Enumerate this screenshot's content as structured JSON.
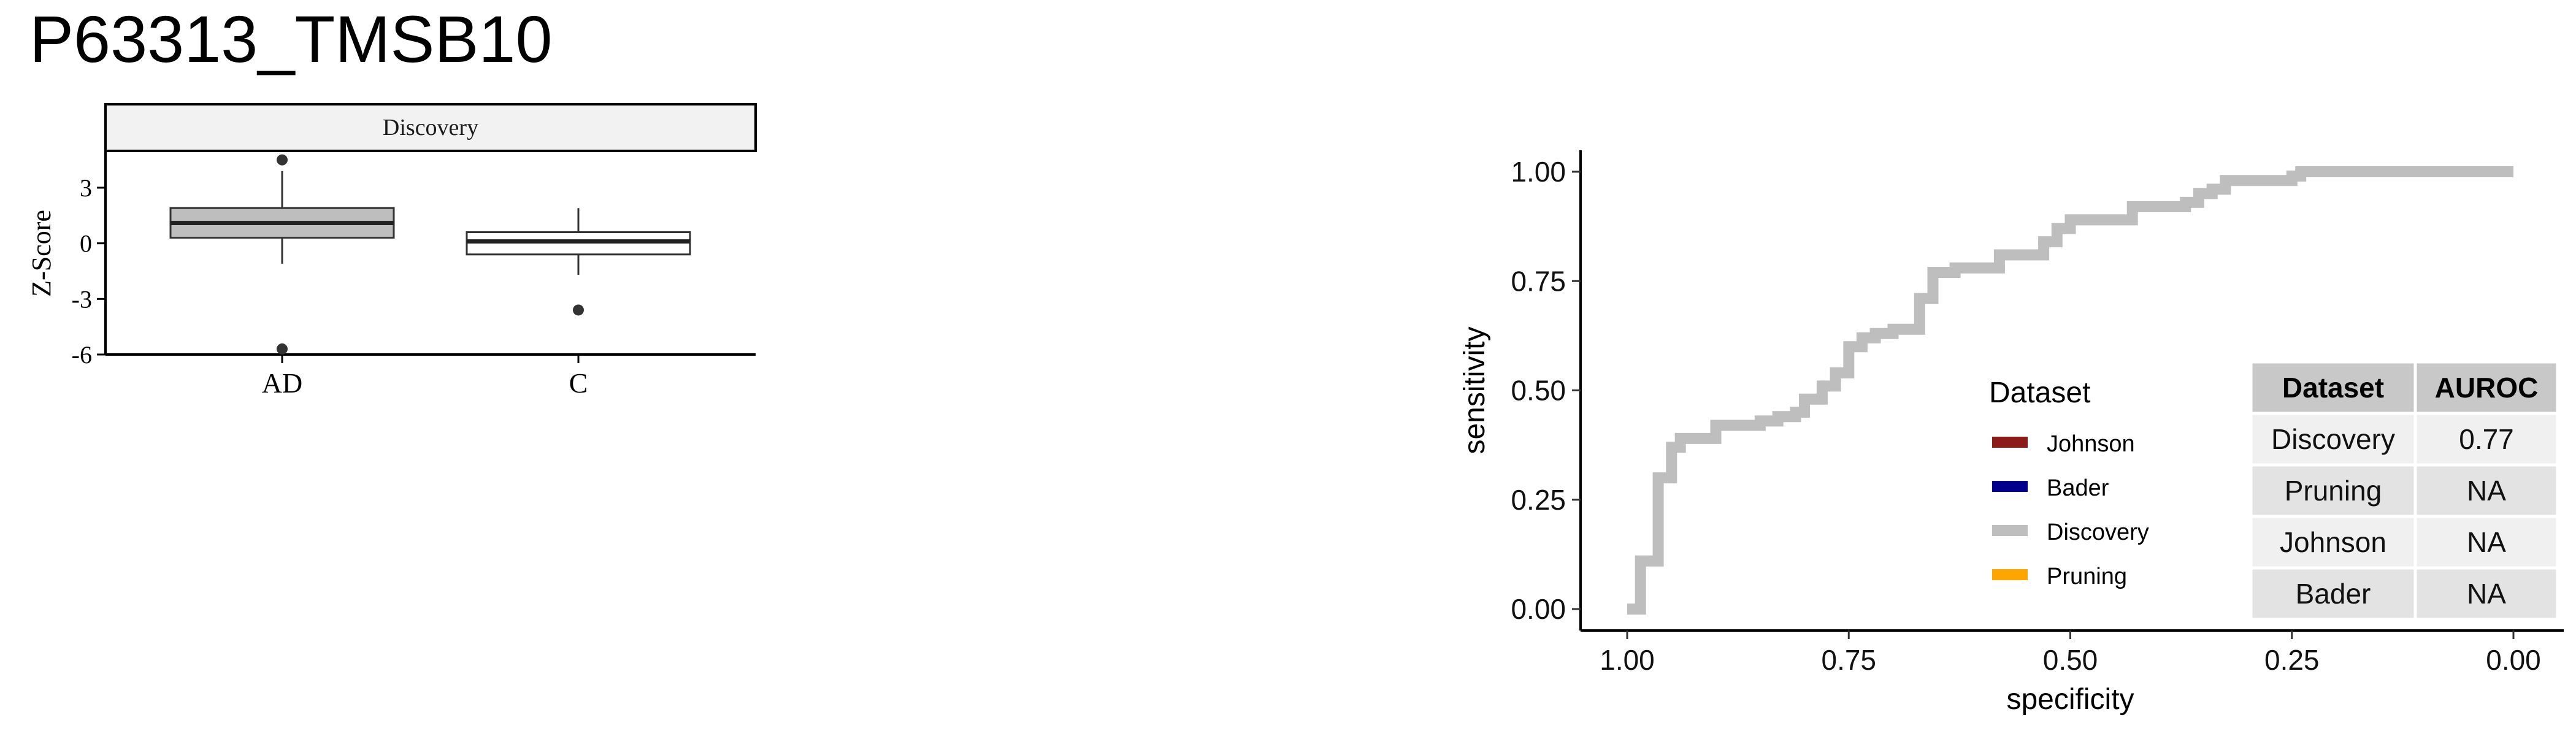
{
  "title": "P63313_TMSB10",
  "colors": {
    "ad_box": "#bebebe",
    "c_box": "#ffffff",
    "strip_fill": "#f2f2f2",
    "roc_line": "#bebebe",
    "johnson": "#8b1a1a",
    "bader": "#00008b",
    "discovery": "#bebebe",
    "pruning": "#ffa500",
    "table_header": "#c8c8c8",
    "table_row_a": "#f0f0f0",
    "table_row_b": "#e3e3e3"
  },
  "chart_data": [
    {
      "type": "box",
      "facet": "Discovery",
      "ylabel": "Z-Score",
      "xlabel": "",
      "ylim": [
        -6,
        5
      ],
      "yticks": [
        "3",
        "0",
        "-3",
        "-6"
      ],
      "categories": [
        "AD",
        "C"
      ],
      "boxes": [
        {
          "name": "AD",
          "q1": 0.3,
          "median": 1.1,
          "q3": 1.9,
          "whisker_low": -1.1,
          "whisker_high": 3.9,
          "outliers": [
            4.5,
            -5.7
          ]
        },
        {
          "name": "C",
          "q1": -0.6,
          "median": 0.1,
          "q3": 0.6,
          "whisker_low": -1.7,
          "whisker_high": 1.9,
          "outliers": [
            -3.6
          ]
        }
      ]
    },
    {
      "type": "line",
      "subtype": "roc",
      "xlabel": "specificity",
      "ylabel": "sensitivity",
      "xlim": [
        1.0,
        0.0
      ],
      "ylim": [
        0.0,
        1.0
      ],
      "xticks": [
        "1.00",
        "0.75",
        "0.50",
        "0.25",
        "0.00"
      ],
      "yticks": [
        "1.00",
        "0.75",
        "0.50",
        "0.25",
        "0.00"
      ],
      "legend": {
        "title": "Dataset",
        "position": "right",
        "entries": [
          "Johnson",
          "Bader",
          "Discovery",
          "Pruning"
        ]
      },
      "series": [
        {
          "name": "Discovery",
          "points": [
            [
              1.0,
              0.0
            ],
            [
              0.985,
              0.0
            ],
            [
              0.985,
              0.11
            ],
            [
              0.965,
              0.11
            ],
            [
              0.965,
              0.3
            ],
            [
              0.95,
              0.3
            ],
            [
              0.95,
              0.37
            ],
            [
              0.94,
              0.37
            ],
            [
              0.94,
              0.39
            ],
            [
              0.9,
              0.39
            ],
            [
              0.9,
              0.42
            ],
            [
              0.85,
              0.42
            ],
            [
              0.85,
              0.43
            ],
            [
              0.83,
              0.43
            ],
            [
              0.83,
              0.44
            ],
            [
              0.81,
              0.44
            ],
            [
              0.81,
              0.45
            ],
            [
              0.8,
              0.45
            ],
            [
              0.8,
              0.48
            ],
            [
              0.78,
              0.48
            ],
            [
              0.78,
              0.51
            ],
            [
              0.765,
              0.51
            ],
            [
              0.765,
              0.54
            ],
            [
              0.75,
              0.54
            ],
            [
              0.75,
              0.6
            ],
            [
              0.735,
              0.6
            ],
            [
              0.735,
              0.62
            ],
            [
              0.72,
              0.62
            ],
            [
              0.72,
              0.63
            ],
            [
              0.7,
              0.63
            ],
            [
              0.7,
              0.64
            ],
            [
              0.67,
              0.64
            ],
            [
              0.67,
              0.71
            ],
            [
              0.655,
              0.71
            ],
            [
              0.655,
              0.77
            ],
            [
              0.63,
              0.77
            ],
            [
              0.63,
              0.78
            ],
            [
              0.58,
              0.78
            ],
            [
              0.58,
              0.81
            ],
            [
              0.53,
              0.81
            ],
            [
              0.53,
              0.84
            ],
            [
              0.515,
              0.84
            ],
            [
              0.515,
              0.87
            ],
            [
              0.5,
              0.87
            ],
            [
              0.5,
              0.89
            ],
            [
              0.43,
              0.89
            ],
            [
              0.43,
              0.92
            ],
            [
              0.37,
              0.92
            ],
            [
              0.37,
              0.93
            ],
            [
              0.355,
              0.93
            ],
            [
              0.355,
              0.95
            ],
            [
              0.34,
              0.95
            ],
            [
              0.34,
              0.96
            ],
            [
              0.325,
              0.96
            ],
            [
              0.325,
              0.98
            ],
            [
              0.25,
              0.98
            ],
            [
              0.25,
              0.99
            ],
            [
              0.24,
              0.99
            ],
            [
              0.24,
              1.0
            ],
            [
              0.0,
              1.0
            ]
          ]
        }
      ]
    }
  ],
  "auroc_table": {
    "headers": [
      "Dataset",
      "AUROC"
    ],
    "rows": [
      [
        "Discovery",
        "0.77"
      ],
      [
        "Pruning",
        "NA"
      ],
      [
        "Johnson",
        "NA"
      ],
      [
        "Bader",
        "NA"
      ]
    ]
  }
}
